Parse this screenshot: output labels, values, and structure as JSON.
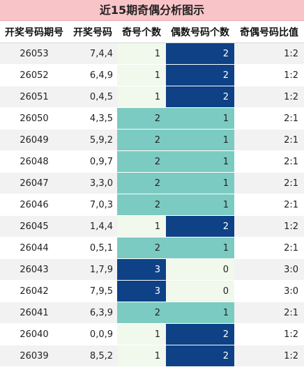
{
  "title": "近15期奇偶分析图示",
  "headers": [
    "开奖号码期号",
    "开奖号码",
    "奇号个数",
    "偶数号码个数",
    "奇偶号码比值"
  ],
  "colors": {
    "light": "#f1f8ec",
    "teal": "#7ccbc2",
    "dark": "#0e4186",
    "title_bg": "#f9c4c8"
  },
  "rows": [
    {
      "issue": "26053",
      "nums": "7,4,4",
      "odd": "1",
      "even": "2",
      "ratio": "1:2"
    },
    {
      "issue": "26052",
      "nums": "6,4,9",
      "odd": "1",
      "even": "2",
      "ratio": "1:2"
    },
    {
      "issue": "26051",
      "nums": "0,4,5",
      "odd": "1",
      "even": "2",
      "ratio": "1:2"
    },
    {
      "issue": "26050",
      "nums": "4,3,5",
      "odd": "2",
      "even": "1",
      "ratio": "2:1"
    },
    {
      "issue": "26049",
      "nums": "5,9,2",
      "odd": "2",
      "even": "1",
      "ratio": "2:1"
    },
    {
      "issue": "26048",
      "nums": "0,9,7",
      "odd": "2",
      "even": "1",
      "ratio": "2:1"
    },
    {
      "issue": "26047",
      "nums": "3,3,0",
      "odd": "2",
      "even": "1",
      "ratio": "2:1"
    },
    {
      "issue": "26046",
      "nums": "7,0,3",
      "odd": "2",
      "even": "1",
      "ratio": "2:1"
    },
    {
      "issue": "26045",
      "nums": "1,4,4",
      "odd": "1",
      "even": "2",
      "ratio": "1:2"
    },
    {
      "issue": "26044",
      "nums": "0,5,1",
      "odd": "2",
      "even": "1",
      "ratio": "2:1"
    },
    {
      "issue": "26043",
      "nums": "1,7,9",
      "odd": "3",
      "even": "0",
      "ratio": "3:0"
    },
    {
      "issue": "26042",
      "nums": "7,9,5",
      "odd": "3",
      "even": "0",
      "ratio": "3:0"
    },
    {
      "issue": "26041",
      "nums": "6,3,9",
      "odd": "2",
      "even": "1",
      "ratio": "2:1"
    },
    {
      "issue": "26040",
      "nums": "0,0,9",
      "odd": "1",
      "even": "2",
      "ratio": "1:2"
    },
    {
      "issue": "26039",
      "nums": "8,5,2",
      "odd": "1",
      "even": "2",
      "ratio": "1:2"
    }
  ]
}
